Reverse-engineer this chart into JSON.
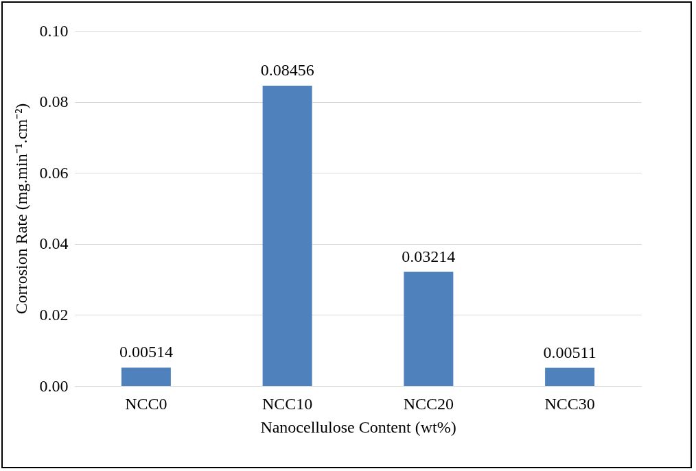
{
  "chart_data": {
    "type": "bar",
    "xlabel": "Nanocellulose Content (wt%)",
    "ylabel": "Corrosion Rate (mg.min⁻¹.cm⁻²)",
    "categories": [
      "NCC0",
      "NCC10",
      "NCC20",
      "NCC30"
    ],
    "values": [
      0.00514,
      0.08456,
      0.03214,
      0.00511
    ],
    "color": "#4f81bd",
    "ylim": [
      0,
      0.1
    ],
    "yticks": [
      {
        "value": 0,
        "label": "0.00"
      },
      {
        "value": 0.02,
        "label": "0.02"
      },
      {
        "value": 0.04,
        "label": "0.04"
      },
      {
        "value": 0.06,
        "label": "0.06"
      },
      {
        "value": 0.08,
        "label": "0.08"
      },
      {
        "value": 0.1,
        "label": "0.10"
      }
    ],
    "grid": "y",
    "data_labels": true
  }
}
